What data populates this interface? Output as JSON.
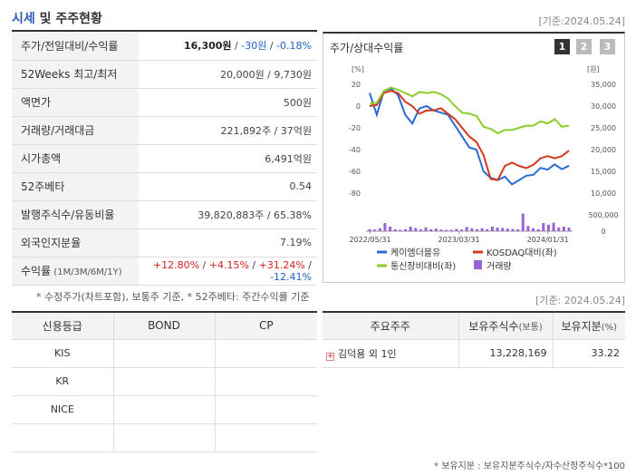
{
  "header": {
    "title_part1": "시세",
    "title_part2": " 및 주주현황",
    "date": "[기준:2024.05.24]"
  },
  "info": {
    "rows": [
      {
        "label": "주가/전일대비/수익률",
        "price": "16,300원",
        "change": " -30원 ",
        "rate": " -0.18%"
      },
      {
        "label": "52Weeks 최고/최저",
        "value": "20,000원 / 9,730원"
      },
      {
        "label": "액면가",
        "value": "500원"
      },
      {
        "label": "거래량/거래대금",
        "value": "221,892주 / 37억원"
      },
      {
        "label": "시가총액",
        "value": "6,491억원"
      },
      {
        "label": "52주베타",
        "value": "0.54"
      },
      {
        "label": "발행주식수/유동비율",
        "value": "39,820,883주 / 65.38%"
      },
      {
        "label": "외국인지분율",
        "value": "7.19%"
      },
      {
        "label_main": "수익률",
        "label_sub": " (1M/3M/6M/1Y)",
        "r1": "+12.80%",
        "r2": " +4.15%",
        "r3": " +31.24%",
        "r4": " -12.41%"
      }
    ],
    "note": "* 수정주가(차트포함), 보통주 기준, * 52주베타: 주간수익률 기준"
  },
  "chart_panel": {
    "title": "주가/상대수익률",
    "tabs": [
      "1",
      "2",
      "3"
    ],
    "legend": [
      "케이엠더블유",
      "KOSDAQ대비(좌)",
      "통신장비대비(좌)",
      "거래량"
    ],
    "colors": {
      "stock": "#2a6ad6",
      "kosdaq": "#d33a1c",
      "telecom": "#8ccc2a",
      "volume": "#9a63d6"
    }
  },
  "chart_data": {
    "type": "line",
    "x_ticks": [
      "2022/05/31",
      "2023/03/31",
      "2024/01/31"
    ],
    "left_axis": {
      "unit": "[%]",
      "ticks": [
        20,
        0,
        -20,
        -40,
        -60,
        -80
      ],
      "range": [
        -80,
        20
      ]
    },
    "right_axis": {
      "unit": "[원]",
      "ticks": [
        "35,000",
        "30,000",
        "25,000",
        "20,000",
        "15,000",
        "10,000"
      ],
      "range": [
        10000,
        35000
      ]
    },
    "volume_axis": {
      "ticks": [
        "500,000",
        "0"
      ],
      "range": [
        0,
        500000
      ]
    },
    "series": [
      {
        "name": "케이엠더블유",
        "axis": "right",
        "values": [
          33000,
          28000,
          33500,
          34000,
          32500,
          28000,
          26000,
          29500,
          30000,
          29000,
          28500,
          28000,
          25500,
          23000,
          20500,
          20000,
          15000,
          13500,
          13000,
          13800,
          12000,
          13000,
          14000,
          14200,
          15800,
          15400,
          16600,
          15500,
          16300
        ]
      },
      {
        "name": "KOSDAQ대비(좌)",
        "axis": "left",
        "values": [
          0,
          1,
          12,
          14,
          12,
          4,
          0,
          -7,
          -4,
          -4,
          -2,
          -7,
          -12,
          -20,
          -28,
          -33,
          -45,
          -67,
          -68,
          -55,
          -52,
          -55,
          -57,
          -54,
          -48,
          -46,
          -48,
          -46,
          -41
        ]
      },
      {
        "name": "통신장비대비(좌)",
        "axis": "left",
        "values": [
          2,
          3,
          14,
          17,
          15,
          12,
          9,
          13,
          12,
          13,
          11,
          7,
          0,
          -6,
          -7,
          -9,
          -19,
          -21,
          -25,
          -22,
          -22,
          -20,
          -18,
          -18,
          -14,
          -16,
          -12,
          -19,
          -18
        ]
      },
      {
        "name": "거래량",
        "axis": "volume",
        "values": [
          60000,
          50000,
          90000,
          250000,
          140000,
          60000,
          40000,
          60000,
          140000,
          100000,
          60000,
          120000,
          60000,
          80000,
          50000,
          40000,
          40000,
          70000,
          50000,
          130000,
          90000,
          60000,
          90000,
          60000,
          140000,
          110000,
          100000,
          80000,
          70000,
          60000,
          540000,
          160000,
          90000,
          60000,
          250000,
          200000,
          260000,
          110000,
          140000,
          110000
        ]
      }
    ]
  },
  "credit": {
    "headers": [
      "신용등급",
      "BOND",
      "CP"
    ],
    "rows": [
      {
        "name": "KIS",
        "bond": "",
        "cp": ""
      },
      {
        "name": "KR",
        "bond": "",
        "cp": ""
      },
      {
        "name": "NICE",
        "bond": "",
        "cp": ""
      },
      {
        "name": "",
        "bond": "",
        "cp": ""
      }
    ]
  },
  "holders": {
    "date": "[기준: 2024.05.24]",
    "headers": {
      "h1": "주요주주",
      "h2_main": "보유주식수",
      "h2_sub": "(보통)",
      "h3_main": "보유지분",
      "h3_sub": "(%)"
    },
    "rows": [
      {
        "name": "김덕용 외 1인",
        "shares": "13,228,169",
        "ratio": "33.22"
      }
    ],
    "note": "* 보유지분 : 보유지분주식수/자수산정주식수*100"
  }
}
